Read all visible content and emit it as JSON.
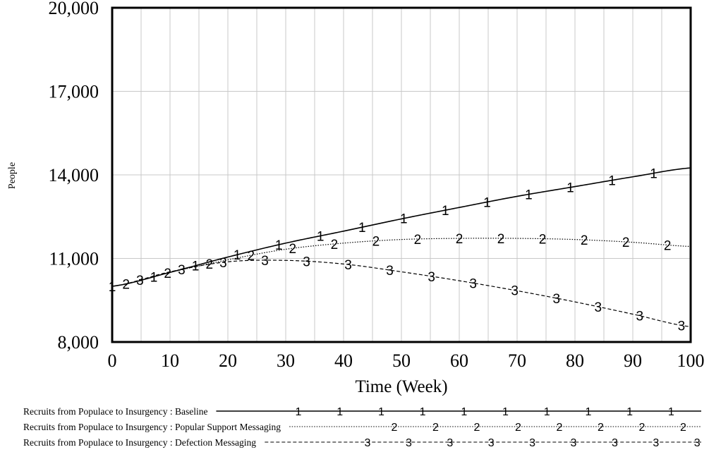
{
  "chart_data": {
    "type": "line",
    "xlabel": "Time (Week)",
    "ylabel": "People",
    "xlim": [
      0,
      100
    ],
    "ylim": [
      8000,
      20000
    ],
    "x_ticks": [
      "0",
      "10",
      "20",
      "30",
      "40",
      "50",
      "60",
      "70",
      "80",
      "90",
      "100"
    ],
    "y_ticks": [
      "8,000",
      "11,000",
      "14,000",
      "17,000",
      "20,000"
    ],
    "grid": true,
    "legend_position": "bottom",
    "series": [
      {
        "name": "Recruits from Populace to Insurgency : Baseline",
        "marker": "1",
        "line_style": "solid",
        "x": [
          0,
          10,
          20,
          30,
          40,
          50,
          60,
          70,
          80,
          90,
          100
        ],
        "y": [
          10000,
          10500,
          11050,
          11550,
          11980,
          12420,
          12830,
          13230,
          13580,
          13930,
          14250
        ]
      },
      {
        "name": "Recruits from Populace to Insurgency : Popular Support Messaging",
        "marker": "2",
        "line_style": "dotted",
        "x": [
          0,
          10,
          20,
          30,
          40,
          50,
          60,
          70,
          80,
          90,
          100
        ],
        "y": [
          10000,
          10500,
          10950,
          11330,
          11550,
          11680,
          11720,
          11720,
          11680,
          11580,
          11430
        ]
      },
      {
        "name": "Recruits from Populace to Insurgency : Defection Messaging",
        "marker": "3",
        "line_style": "dashed",
        "x": [
          0,
          10,
          20,
          30,
          40,
          50,
          60,
          70,
          80,
          90,
          100
        ],
        "y": [
          10000,
          10520,
          10880,
          10930,
          10800,
          10520,
          10200,
          9840,
          9440,
          9000,
          8550
        ]
      }
    ]
  }
}
